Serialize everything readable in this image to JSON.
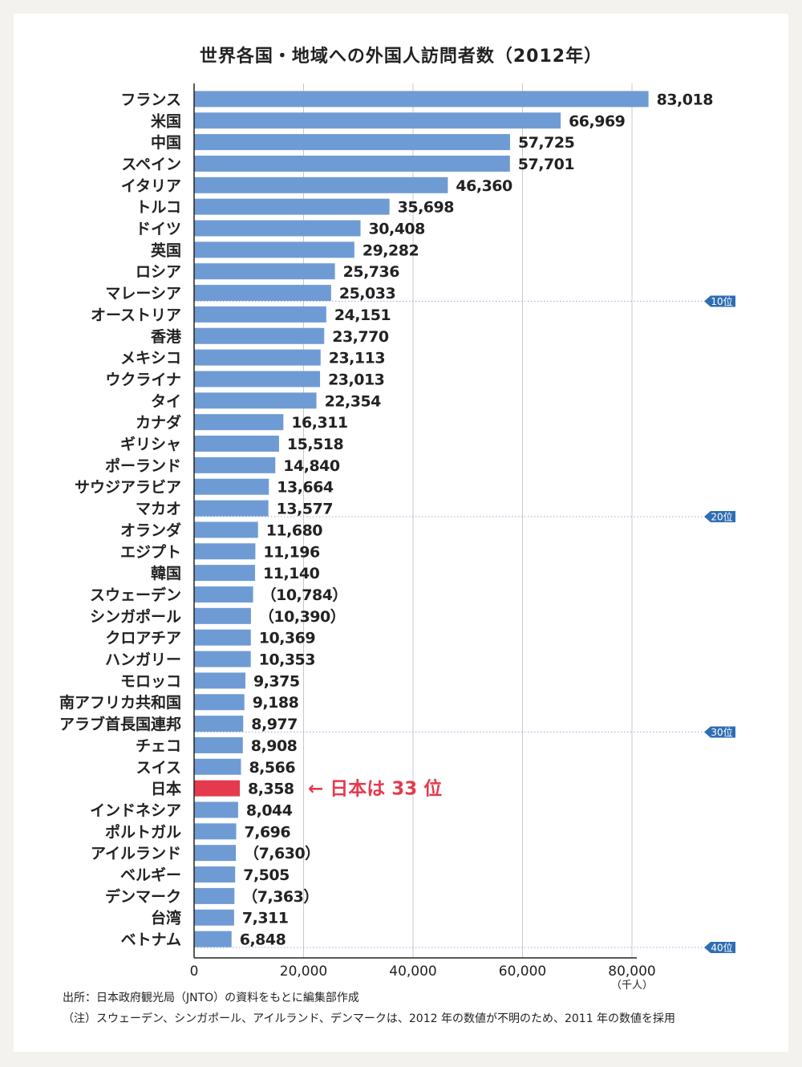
{
  "title": "世界各国・地域への外国人訪問者数（2012年）",
  "colors": {
    "bar": "#6f9bd4",
    "highlight": "#e5394d",
    "rank_badge": "#2f6db3",
    "grid": "#c8c8c8"
  },
  "callout": "← 日本は 33 位",
  "source": "出所：日本政府観光局（JNTO）の資料をもとに編集部作成",
  "note": "（注）スウェーデン、シンガポール、アイルランド、デンマークは、2012 年の数値が不明のため、2011 年の数値を採用",
  "chart_data": {
    "type": "bar",
    "orientation": "horizontal",
    "title": "世界各国・地域への外国人訪問者数（2012年）",
    "unit_label": "（千人）",
    "xlim": [
      0,
      80000
    ],
    "xticks": [
      "0",
      "20,000",
      "40,000",
      "60,000",
      "80,000"
    ],
    "xtick_values": [
      0,
      20000,
      40000,
      60000,
      80000
    ],
    "grid": true,
    "highlight": "日本",
    "rank_markers": [
      {
        "label": "10位",
        "after_rank": 10
      },
      {
        "label": "20位",
        "after_rank": 20
      },
      {
        "label": "30位",
        "after_rank": 30
      },
      {
        "label": "40位",
        "after_rank": 40
      }
    ],
    "categories": [
      "フランス",
      "米国",
      "中国",
      "スペイン",
      "イタリア",
      "トルコ",
      "ドイツ",
      "英国",
      "ロシア",
      "マレーシア",
      "オーストリア",
      "香港",
      "メキシコ",
      "ウクライナ",
      "タイ",
      "カナダ",
      "ギリシャ",
      "ポーランド",
      "サウジアラビア",
      "マカオ",
      "オランダ",
      "エジプト",
      "韓国",
      "スウェーデン",
      "シンガポール",
      "クロアチア",
      "ハンガリー",
      "モロッコ",
      "南アフリカ共和国",
      "アラブ首長国連邦",
      "チェコ",
      "スイス",
      "日本",
      "インドネシア",
      "ポルトガル",
      "アイルランド",
      "ベルギー",
      "デンマーク",
      "台湾",
      "ベトナム"
    ],
    "values": [
      83018,
      66969,
      57725,
      57701,
      46360,
      35698,
      30408,
      29282,
      25736,
      25033,
      24151,
      23770,
      23113,
      23013,
      22354,
      16311,
      15518,
      14840,
      13664,
      13577,
      11680,
      11196,
      11140,
      10784,
      10390,
      10369,
      10353,
      9375,
      9188,
      8977,
      8908,
      8566,
      8358,
      8044,
      7696,
      7630,
      7505,
      7363,
      7311,
      6848
    ],
    "value_labels": [
      "83,018",
      "66,969",
      "57,725",
      "57,701",
      "46,360",
      "35,698",
      "30,408",
      "29,282",
      "25,736",
      "25,033",
      "24,151",
      "23,770",
      "23,113",
      "23,013",
      "22,354",
      "16,311",
      "15,518",
      "14,840",
      "13,664",
      "13,577",
      "11,680",
      "11,196",
      "11,140",
      "（10,784）",
      "（10,390）",
      "10,369",
      "10,353",
      "9,375",
      "9,188",
      "8,977",
      "8,908",
      "8,566",
      "8,358",
      "8,044",
      "7,696",
      "（7,630）",
      "7,505",
      "（7,363）",
      "7,311",
      "6,848"
    ]
  }
}
